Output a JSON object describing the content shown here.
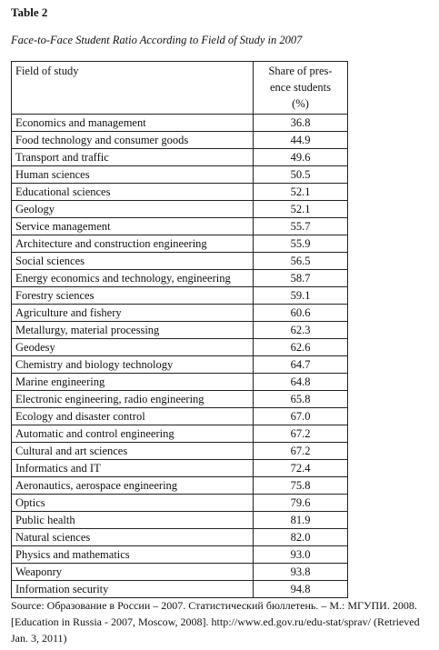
{
  "title": "Table 2",
  "caption": "Face-to-Face Student Ratio According to Field of Study in 2007",
  "table": {
    "header": [
      "Field of study",
      [
        "Share of pres-",
        "ence students",
        "(%)"
      ]
    ],
    "rows": [
      [
        "Economics and management",
        "36.8"
      ],
      [
        "Food technology and consumer goods",
        "44.9"
      ],
      [
        "Transport and traffic",
        "49.6"
      ],
      [
        "Human sciences",
        "50.5"
      ],
      [
        "Educational sciences",
        "52.1"
      ],
      [
        "Geology",
        "52.1"
      ],
      [
        "Service management",
        "55.7"
      ],
      [
        "Architecture and construction engineering",
        "55.9"
      ],
      [
        "Social sciences",
        "56.5"
      ],
      [
        "Energy economics and technology, engineering",
        "58.7"
      ],
      [
        "Forestry sciences",
        "59.1"
      ],
      [
        "Agriculture and fishery",
        "60.6"
      ],
      [
        "Metallurgy, material processing",
        "62.3"
      ],
      [
        "Geodesy",
        "62.6"
      ],
      [
        "Chemistry and biology technology",
        "64.7"
      ],
      [
        "Marine engineering",
        "64.8"
      ],
      [
        "Electronic engineering, radio engineering",
        "65.8"
      ],
      [
        "Ecology and disaster control",
        "67.0"
      ],
      [
        "Automatic and control engineering",
        "67.2"
      ],
      [
        "Cultural and art sciences",
        "67.2"
      ],
      [
        "Informatics and IT",
        "72.4"
      ],
      [
        "Aeronautics, aerospace engineering",
        "75.8"
      ],
      [
        "Optics",
        "79.6"
      ],
      [
        "Public health",
        "81.9"
      ],
      [
        "Natural sciences",
        "82.0"
      ],
      [
        "Physics and mathematics",
        "93.0"
      ],
      [
        "Weaponry",
        "93.8"
      ],
      [
        "Information security",
        "94.8"
      ]
    ]
  },
  "source": "Source: Образование в России – 2007. Статистический бюллетень. – М.: МГУПИ. 2008. [Education in Russia - 2007, Moscow, 2008]. http://www.ed.gov.ru/edu-stat/sprav/ (Retrieved Jan. 3, 2011)"
}
